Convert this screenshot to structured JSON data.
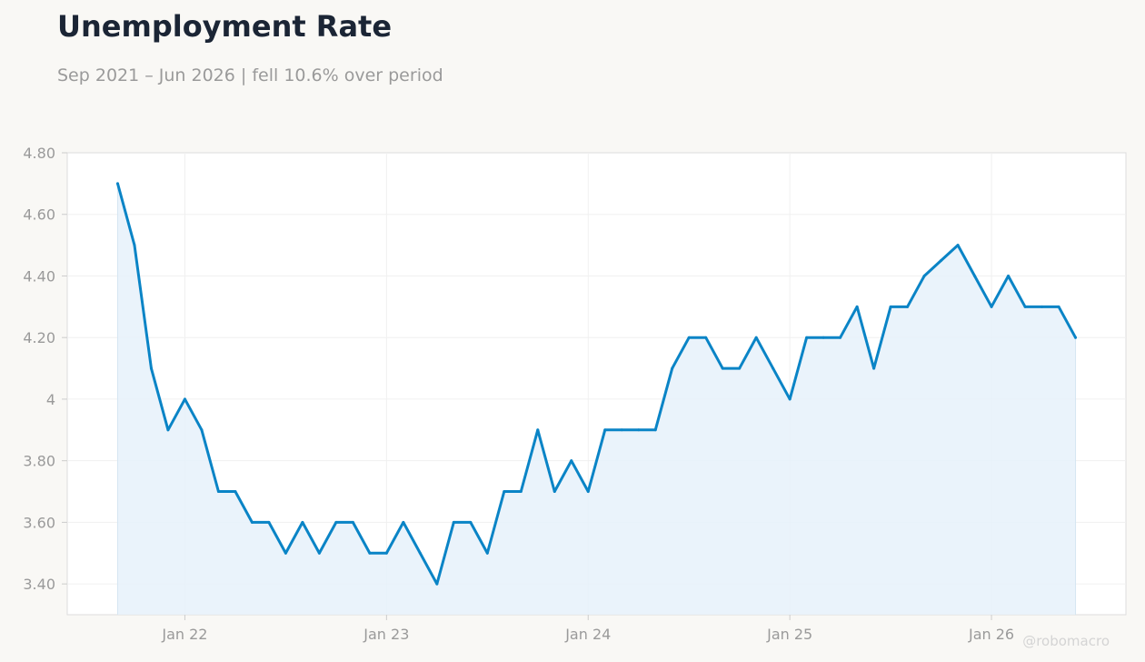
{
  "title": "Unemployment Rate",
  "subtitle": "Sep 2021 – Jun 2026 | fell 10.6% over period",
  "watermark": "@robomacro",
  "colors": {
    "line": "#0a84c6",
    "fill": "#e6f1fa",
    "title": "#1b2535",
    "text": "#9a9a9a",
    "grid": "#f0f0f0",
    "background": "#f9f8f5",
    "plot_background": "#ffffff",
    "border": "#dddddd"
  },
  "chart_data": {
    "type": "area",
    "title": "Unemployment Rate",
    "subtitle": "Sep 2021 – Jun 2026 | fell 10.6% over period",
    "xlabel": "",
    "ylabel": "",
    "x_start": "2021-09",
    "x_end": "2026-06",
    "xlim": [
      "2021-06",
      "2026-09"
    ],
    "ylim": [
      3.3,
      4.8
    ],
    "grid": true,
    "legend": "none",
    "x_ticks": [
      {
        "date": "2022-01",
        "label": "Jan 22"
      },
      {
        "date": "2023-01",
        "label": "Jan 23"
      },
      {
        "date": "2024-01",
        "label": "Jan 24"
      },
      {
        "date": "2025-01",
        "label": "Jan 25"
      },
      {
        "date": "2026-01",
        "label": "Jan 26"
      }
    ],
    "y_ticks": [
      {
        "value": 3.4,
        "label": "3.40"
      },
      {
        "value": 3.6,
        "label": "3.60"
      },
      {
        "value": 3.8,
        "label": "3.80"
      },
      {
        "value": 4.0,
        "label": "4"
      },
      {
        "value": 4.2,
        "label": "4.20"
      },
      {
        "value": 4.4,
        "label": "4.40"
      },
      {
        "value": 4.6,
        "label": "4.60"
      },
      {
        "value": 4.8,
        "label": "4.80"
      }
    ],
    "series": [
      {
        "x": [
          "2021-09",
          "2021-10",
          "2021-11",
          "2021-12",
          "2022-01",
          "2022-02",
          "2022-03",
          "2022-04",
          "2022-05",
          "2022-06",
          "2022-07",
          "2022-08",
          "2022-09",
          "2022-10",
          "2022-11",
          "2022-12",
          "2023-01",
          "2023-02",
          "2023-03",
          "2023-04",
          "2023-05",
          "2023-06",
          "2023-07",
          "2023-08",
          "2023-09",
          "2023-10",
          "2023-11",
          "2023-12",
          "2024-01",
          "2024-02",
          "2024-03",
          "2024-04",
          "2024-05",
          "2024-06",
          "2024-07",
          "2024-08",
          "2024-09",
          "2024-10",
          "2024-11",
          "2024-12",
          "2025-01",
          "2025-02",
          "2025-03",
          "2025-04",
          "2025-05",
          "2025-06",
          "2025-07",
          "2025-08",
          "2025-09",
          "2025-10",
          "2025-11",
          "2025-12",
          "2026-01",
          "2026-02",
          "2026-03",
          "2026-04",
          "2026-05",
          "2026-06"
        ],
        "values": [
          4.7,
          4.5,
          4.1,
          3.9,
          4.0,
          3.9,
          3.7,
          3.7,
          3.6,
          3.6,
          3.5,
          3.6,
          3.5,
          3.6,
          3.6,
          3.5,
          3.5,
          3.6,
          3.5,
          3.4,
          3.6,
          3.6,
          3.5,
          3.7,
          3.7,
          3.9,
          3.7,
          3.8,
          3.7,
          3.9,
          3.9,
          3.9,
          3.9,
          4.1,
          4.2,
          4.2,
          4.1,
          4.1,
          4.2,
          4.1,
          4.0,
          4.2,
          4.2,
          4.2,
          4.3,
          4.1,
          4.3,
          4.3,
          4.4,
          4.45,
          4.5,
          4.4,
          4.3,
          4.4,
          4.3,
          4.3,
          4.3,
          4.2
        ]
      }
    ]
  }
}
